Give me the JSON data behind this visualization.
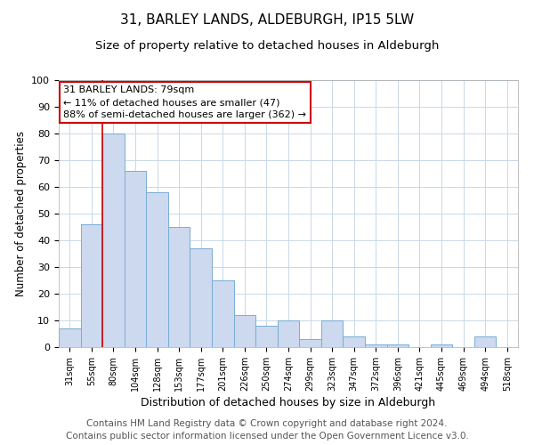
{
  "title": "31, BARLEY LANDS, ALDEBURGH, IP15 5LW",
  "subtitle": "Size of property relative to detached houses in Aldeburgh",
  "xlabel": "Distribution of detached houses by size in Aldeburgh",
  "ylabel": "Number of detached properties",
  "bar_labels": [
    "31sqm",
    "55sqm",
    "80sqm",
    "104sqm",
    "128sqm",
    "153sqm",
    "177sqm",
    "201sqm",
    "226sqm",
    "250sqm",
    "274sqm",
    "299sqm",
    "323sqm",
    "347sqm",
    "372sqm",
    "396sqm",
    "421sqm",
    "445sqm",
    "469sqm",
    "494sqm",
    "518sqm"
  ],
  "bar_values": [
    7,
    46,
    80,
    66,
    58,
    45,
    37,
    25,
    12,
    8,
    10,
    3,
    10,
    4,
    1,
    1,
    0,
    1,
    0,
    4,
    0
  ],
  "bar_color": "#ccd9ee",
  "bar_edge_color": "#7aadd4",
  "highlight_index": 2,
  "highlight_line_color": "#cc0000",
  "ylim": [
    0,
    100
  ],
  "annotation_box_text": "31 BARLEY LANDS: 79sqm\n← 11% of detached houses are smaller (47)\n88% of semi-detached houses are larger (362) →",
  "annotation_box_color": "#cc0000",
  "footer_line1": "Contains HM Land Registry data © Crown copyright and database right 2024.",
  "footer_line2": "Contains public sector information licensed under the Open Government Licence v3.0.",
  "title_fontsize": 11,
  "subtitle_fontsize": 9.5,
  "footer_fontsize": 7.5,
  "grid_color": "#c8d8e8"
}
